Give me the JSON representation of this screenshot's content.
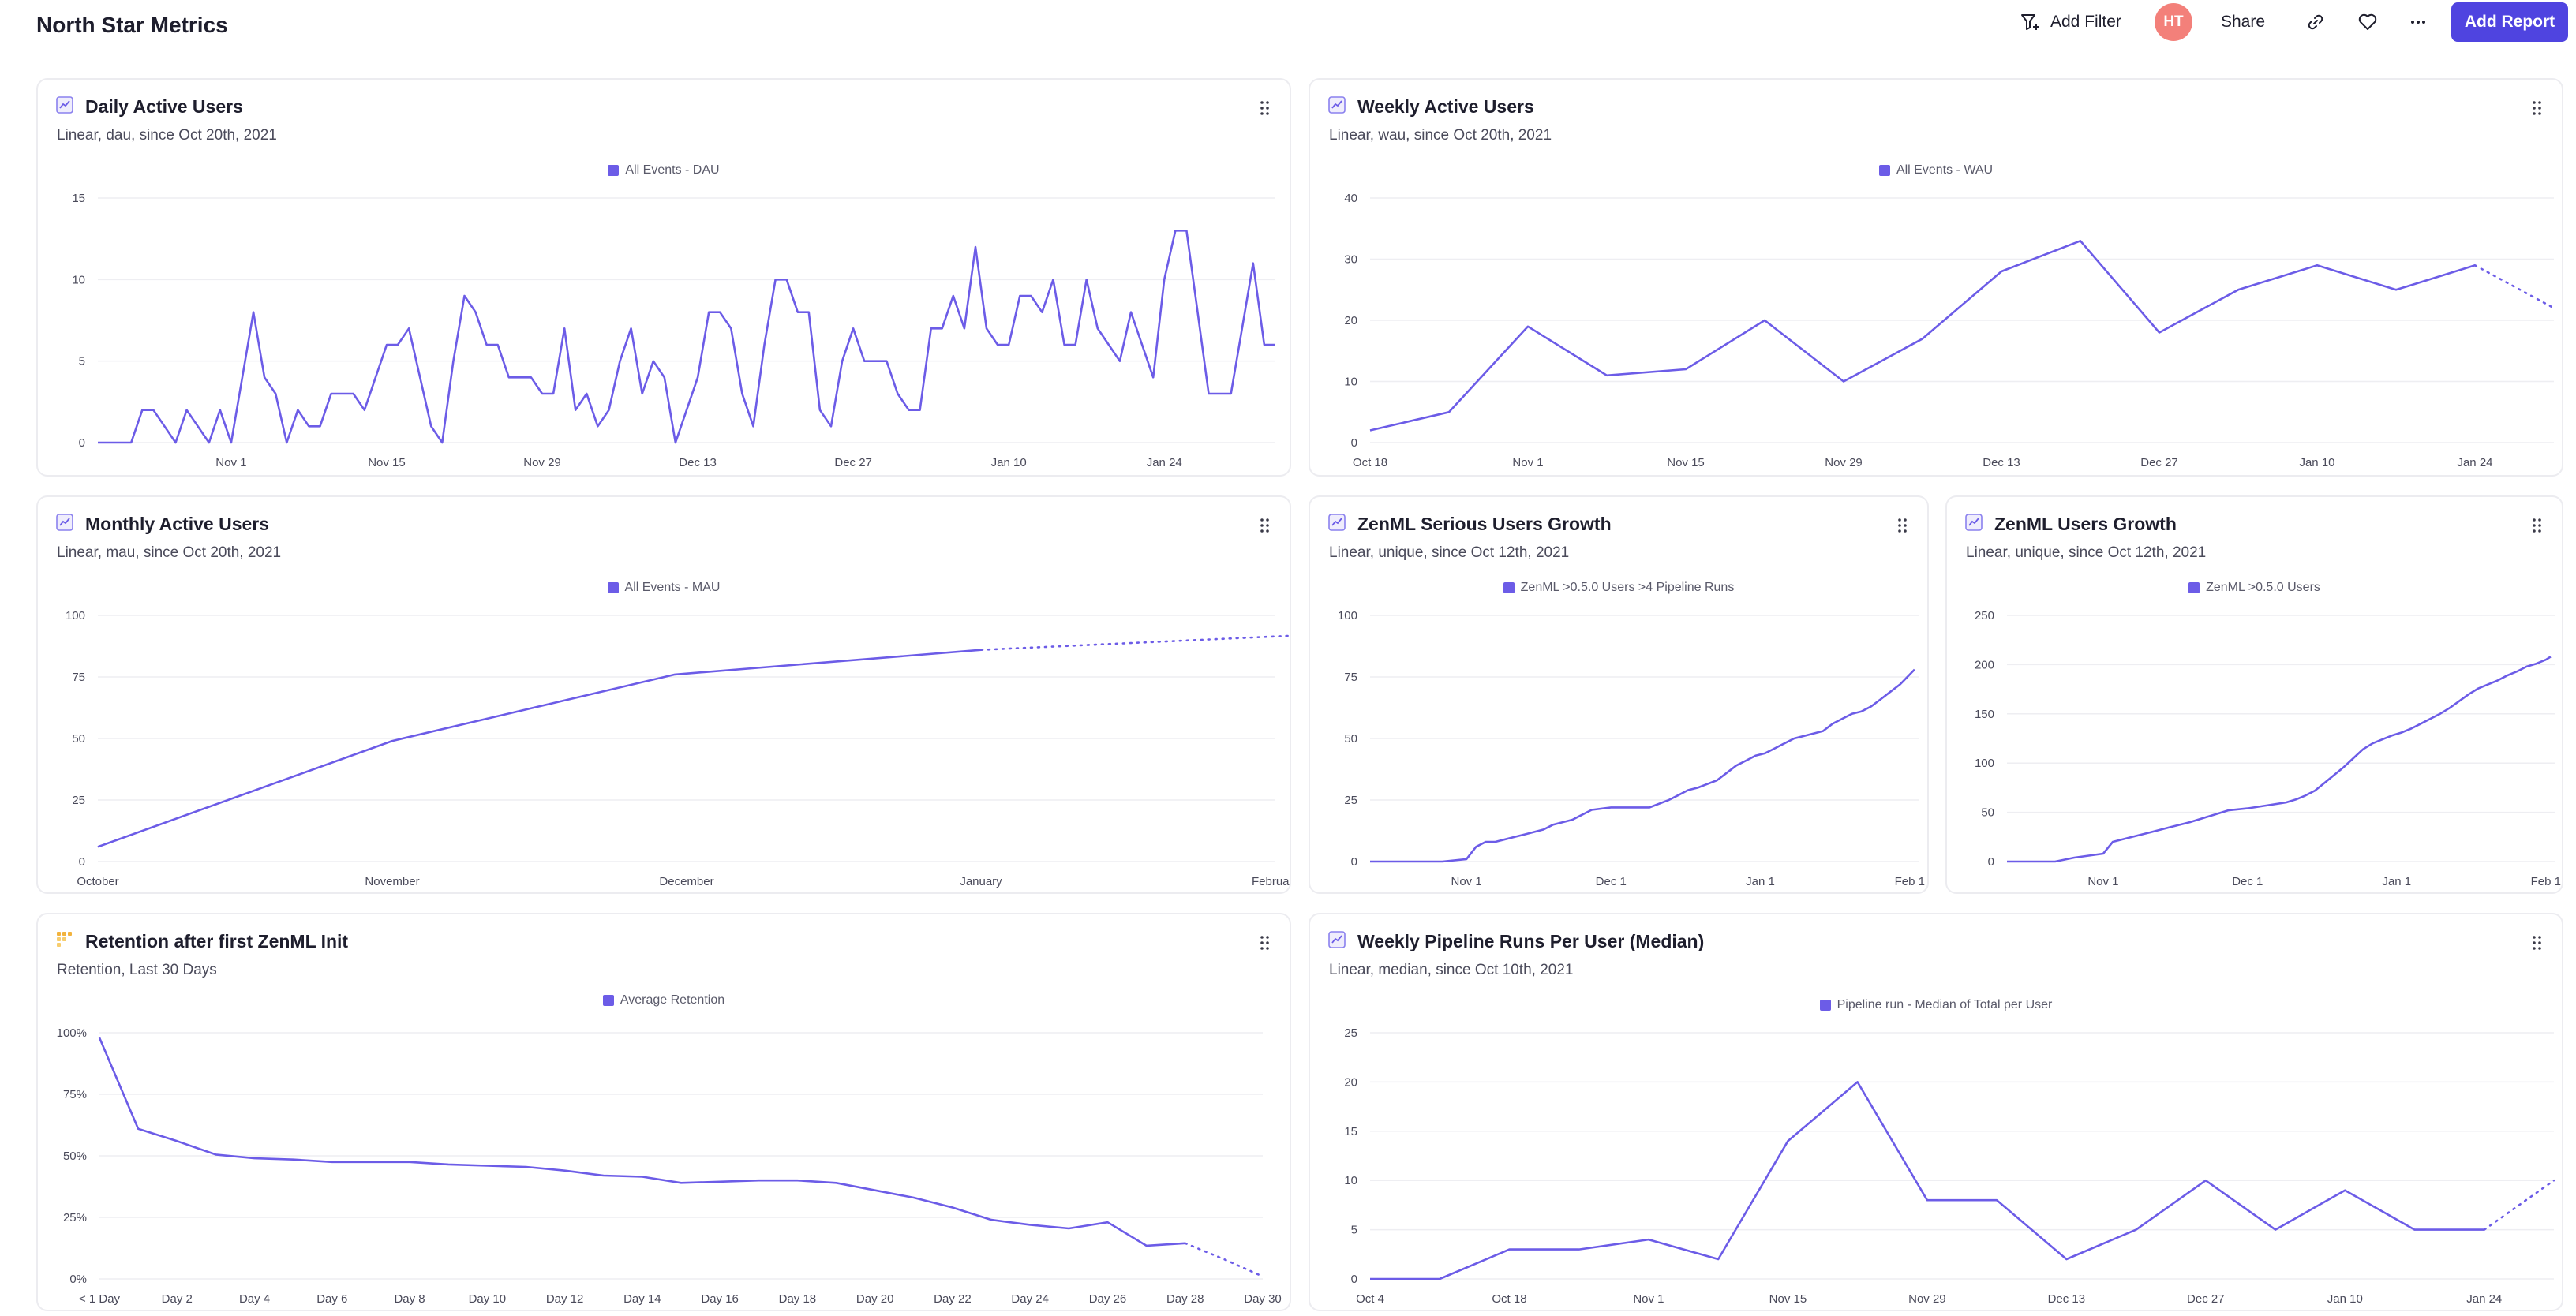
{
  "header": {
    "title": "North Star Metrics",
    "add_filter": "Add Filter",
    "avatar": "HT",
    "share": "Share",
    "add_report": "Add Report"
  },
  "colors": {
    "accent": "#6c5ce7",
    "button": "#4f44e0",
    "avatar": "#f3807a",
    "grid": "#eeeef2"
  },
  "cards": {
    "dau": {
      "title": "Daily Active Users",
      "subtitle": "Linear, dau, since Oct 20th, 2021",
      "legend": "All Events - DAU",
      "icon": "line-chart-icon"
    },
    "wau": {
      "title": "Weekly Active Users",
      "subtitle": "Linear, wau, since Oct 20th, 2021",
      "legend": "All Events - WAU",
      "icon": "line-chart-icon"
    },
    "mau": {
      "title": "Monthly Active Users",
      "subtitle": "Linear, mau, since Oct 20th, 2021",
      "legend": "All Events - MAU",
      "icon": "line-chart-icon"
    },
    "serious": {
      "title": "ZenML Serious Users Growth",
      "subtitle": "Linear, unique, since Oct 12th, 2021",
      "legend": "ZenML >0.5.0 Users >4 Pipeline Runs",
      "icon": "line-chart-icon"
    },
    "users": {
      "title": "ZenML Users Growth",
      "subtitle": "Linear, unique, since Oct 12th, 2021",
      "legend": "ZenML >0.5.0 Users",
      "icon": "line-chart-icon"
    },
    "retention": {
      "title": "Retention after first ZenML Init",
      "subtitle": "Retention, Last 30 Days",
      "legend": "Average Retention",
      "icon": "retention-grid-icon"
    },
    "pipeline": {
      "title": "Weekly Pipeline Runs Per User (Median)",
      "subtitle": "Linear, median, since Oct 10th, 2021",
      "legend": "Pipeline run - Median of Total per User",
      "icon": "line-chart-icon"
    }
  },
  "chart_data": [
    {
      "id": "dau",
      "type": "line",
      "yticks": [
        "0",
        "5",
        "10",
        "15"
      ],
      "ylim": [
        0,
        15
      ],
      "xticks": [
        "Nov 1",
        "Nov 15",
        "Nov 29",
        "Dec 13",
        "Dec 27",
        "Jan 10",
        "Jan 24"
      ],
      "xtick_pos": [
        12,
        26,
        40,
        54,
        68,
        82,
        96
      ],
      "xlim": [
        0,
        106
      ],
      "values": [
        0,
        0,
        0,
        0,
        2,
        2,
        1,
        0,
        2,
        1,
        0,
        2,
        0,
        4,
        8,
        4,
        3,
        0,
        2,
        1,
        1,
        3,
        3,
        3,
        2,
        4,
        6,
        6,
        7,
        4,
        1,
        0,
        5,
        9,
        8,
        6,
        6,
        4,
        4,
        4,
        3,
        3,
        7,
        2,
        3,
        1,
        2,
        5,
        7,
        3,
        5,
        4,
        0,
        2,
        4,
        8,
        8,
        7,
        3,
        1,
        6,
        10,
        10,
        8,
        8,
        2,
        1,
        5,
        7,
        5,
        5,
        5,
        3,
        2,
        2,
        7,
        7,
        9,
        7,
        12,
        7,
        6,
        6,
        9,
        9,
        8,
        10,
        6,
        6,
        10,
        7,
        6,
        5,
        8,
        6,
        4,
        10,
        13,
        13,
        8,
        3,
        3,
        3,
        7,
        11,
        6,
        6
      ],
      "projected_from": null,
      "grid": true
    },
    {
      "id": "wau",
      "type": "line",
      "yticks": [
        "0",
        "10",
        "20",
        "30",
        "40"
      ],
      "ylim": [
        0,
        40
      ],
      "xticks": [
        "Oct 18",
        "Nov 1",
        "Nov 15",
        "Nov 29",
        "Dec 13",
        "Dec 27",
        "Jan 10",
        "Jan 24"
      ],
      "xtick_pos": [
        0,
        2,
        4,
        6,
        8,
        10,
        12,
        14
      ],
      "xlim": [
        0,
        15
      ],
      "values": [
        2,
        5,
        19,
        11,
        12,
        20,
        10,
        17,
        28,
        33,
        18,
        25,
        29,
        25,
        29,
        22
      ],
      "projected_from": 14,
      "grid": true
    },
    {
      "id": "mau",
      "type": "line",
      "yticks": [
        "0",
        "25",
        "50",
        "75",
        "100"
      ],
      "ylim": [
        0,
        100
      ],
      "xticks": [
        "October",
        "November",
        "December",
        "January",
        "February"
      ],
      "xtick_pos": [
        0,
        1,
        2,
        3,
        4
      ],
      "xlim": [
        0,
        4
      ],
      "x": [
        0,
        1,
        1.96,
        3,
        4.1
      ],
      "values": [
        6,
        49,
        76,
        86,
        92
      ],
      "projected_from": 3,
      "grid": true
    },
    {
      "id": "serious",
      "type": "line",
      "yticks": [
        "0",
        "25",
        "50",
        "75",
        "100"
      ],
      "ylim": [
        0,
        100
      ],
      "xticks": [
        "Nov 1",
        "Dec 1",
        "Jan 1",
        "Feb 1"
      ],
      "xtick_pos": [
        20,
        50,
        81,
        112
      ],
      "xlim": [
        0,
        114
      ],
      "x": [
        0,
        15,
        20,
        22,
        24,
        26,
        30,
        32,
        36,
        38,
        40,
        42,
        44,
        46,
        50,
        52,
        54,
        58,
        62,
        64,
        66,
        68,
        72,
        74,
        76,
        78,
        80,
        82,
        84,
        86,
        88,
        92,
        94,
        96,
        98,
        100,
        102,
        104,
        106,
        108,
        110,
        112,
        113
      ],
      "values": [
        0,
        0,
        1,
        6,
        8,
        8,
        10,
        11,
        13,
        15,
        16,
        17,
        19,
        21,
        22,
        22,
        22,
        22,
        25,
        27,
        29,
        30,
        33,
        36,
        39,
        41,
        43,
        44,
        46,
        48,
        50,
        52,
        53,
        56,
        58,
        60,
        61,
        63,
        66,
        69,
        72,
        76,
        78
      ],
      "projected_from": null,
      "grid": true
    },
    {
      "id": "users",
      "type": "line",
      "yticks": [
        "0",
        "50",
        "100",
        "150",
        "200",
        "250"
      ],
      "ylim": [
        0,
        250
      ],
      "xticks": [
        "Nov 1",
        "Dec 1",
        "Jan 1",
        "Feb 1"
      ],
      "xtick_pos": [
        20,
        50,
        81,
        112
      ],
      "xlim": [
        0,
        114
      ],
      "x": [
        0,
        10,
        14,
        20,
        22,
        26,
        30,
        34,
        38,
        42,
        46,
        50,
        54,
        58,
        60,
        62,
        64,
        66,
        68,
        70,
        72,
        74,
        76,
        78,
        80,
        82,
        84,
        86,
        88,
        90,
        92,
        94,
        96,
        98,
        100,
        102,
        104,
        106,
        108,
        110,
        112,
        113
      ],
      "values": [
        0,
        0,
        4,
        8,
        20,
        25,
        30,
        35,
        40,
        46,
        52,
        54,
        57,
        60,
        63,
        67,
        72,
        80,
        88,
        96,
        105,
        114,
        120,
        124,
        128,
        131,
        135,
        140,
        145,
        150,
        156,
        163,
        170,
        176,
        180,
        184,
        189,
        193,
        198,
        201,
        205,
        208
      ],
      "projected_from": null,
      "grid": true
    },
    {
      "id": "retention",
      "type": "line",
      "yticks": [
        "0%",
        "25%",
        "50%",
        "75%",
        "100%"
      ],
      "ylim": [
        0,
        100
      ],
      "xticks": [
        "< 1 Day",
        "Day 2",
        "Day 4",
        "Day 6",
        "Day 8",
        "Day 10",
        "Day 12",
        "Day 14",
        "Day 16",
        "Day 18",
        "Day 20",
        "Day 22",
        "Day 24",
        "Day 26",
        "Day 28",
        "Day 30"
      ],
      "xtick_pos": [
        0,
        2,
        4,
        6,
        8,
        10,
        12,
        14,
        16,
        18,
        20,
        22,
        24,
        26,
        28,
        30
      ],
      "xlim": [
        0,
        30
      ],
      "values": [
        98,
        61,
        56,
        50.5,
        49,
        48.5,
        47.5,
        47.5,
        47.5,
        46.5,
        46,
        45.5,
        44,
        42,
        41.5,
        39,
        39.5,
        40,
        40,
        39,
        36,
        33,
        29,
        24,
        22,
        20.5,
        23,
        13.5,
        14.5,
        8,
        1
      ],
      "projected_from": 28,
      "grid": true
    },
    {
      "id": "pipeline",
      "type": "line",
      "yticks": [
        "0",
        "5",
        "10",
        "15",
        "20",
        "25"
      ],
      "ylim": [
        0,
        25
      ],
      "xticks": [
        "Oct 4",
        "Oct 18",
        "Nov 1",
        "Nov 15",
        "Nov 29",
        "Dec 13",
        "Dec 27",
        "Jan 10",
        "Jan 24"
      ],
      "xtick_pos": [
        0,
        2,
        4,
        6,
        8,
        10,
        12,
        14,
        16
      ],
      "xlim": [
        0,
        17
      ],
      "values": [
        0,
        0,
        3,
        3,
        4,
        2,
        14,
        20,
        8,
        8,
        2,
        5,
        10,
        5,
        9,
        5,
        5,
        10
      ],
      "projected_from": 16,
      "grid": true
    }
  ]
}
